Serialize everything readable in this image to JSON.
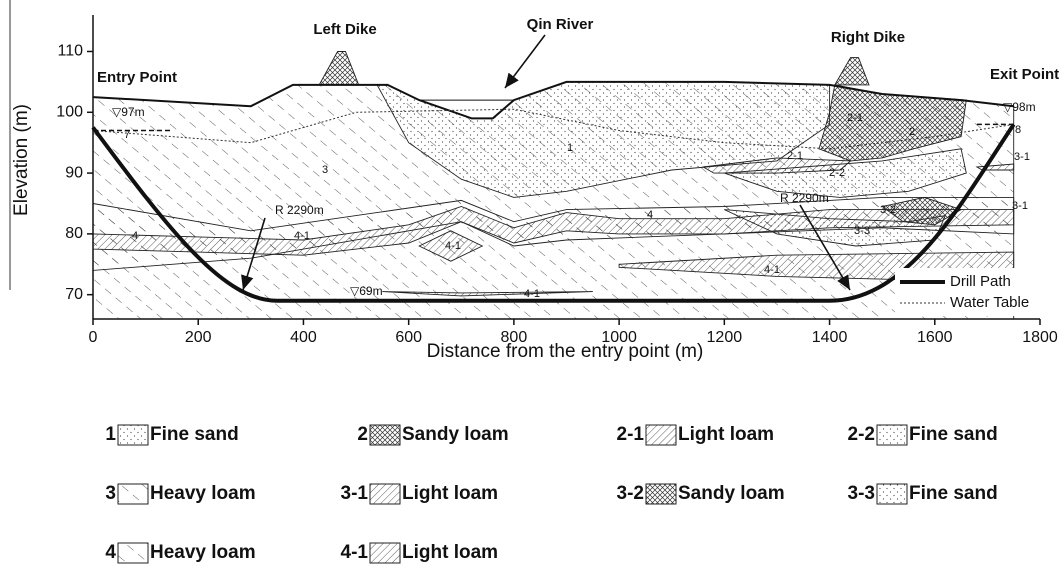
{
  "axes": {
    "xlabel": "Distance from the entry point (m)",
    "ylabel": "Elevation (m)",
    "xlim": [
      0,
      1800
    ],
    "ylim": [
      66,
      116
    ],
    "xticks": [
      0,
      200,
      400,
      600,
      800,
      1000,
      1200,
      1400,
      1600,
      1800
    ],
    "yticks": [
      70,
      80,
      90,
      100,
      110
    ]
  },
  "annotations": [
    "Left Dike",
    "Qin River",
    "Right Dike",
    "Entry  Point",
    "Exit  Point",
    "▽97m",
    "▽98m",
    "R 2290m",
    "R 2290m",
    "▽69m"
  ],
  "layer_labels": [
    "7",
    "3",
    "1",
    "2-1",
    "2",
    "8",
    "2-1",
    "3-1",
    "2-2",
    "4",
    "4-1",
    "4-1",
    "4",
    "3-2",
    "3-1",
    "3-3",
    "4-1",
    "4-1"
  ],
  "plot_legend": [
    "Drill Path",
    "Water Table"
  ],
  "legend": [
    {
      "code": "1",
      "name": "Fine sand"
    },
    {
      "code": "2",
      "name": "Sandy loam"
    },
    {
      "code": "2-1",
      "name": "Light loam"
    },
    {
      "code": "2-2",
      "name": "Fine sand"
    },
    {
      "code": "3",
      "name": "Heavy loam"
    },
    {
      "code": "3-1",
      "name": "Light loam"
    },
    {
      "code": "3-2",
      "name": "Sandy loam"
    },
    {
      "code": "3-3",
      "name": "Fine sand"
    },
    {
      "code": "4",
      "name": "Heavy loam"
    },
    {
      "code": "4-1",
      "name": "Light loam"
    }
  ]
}
